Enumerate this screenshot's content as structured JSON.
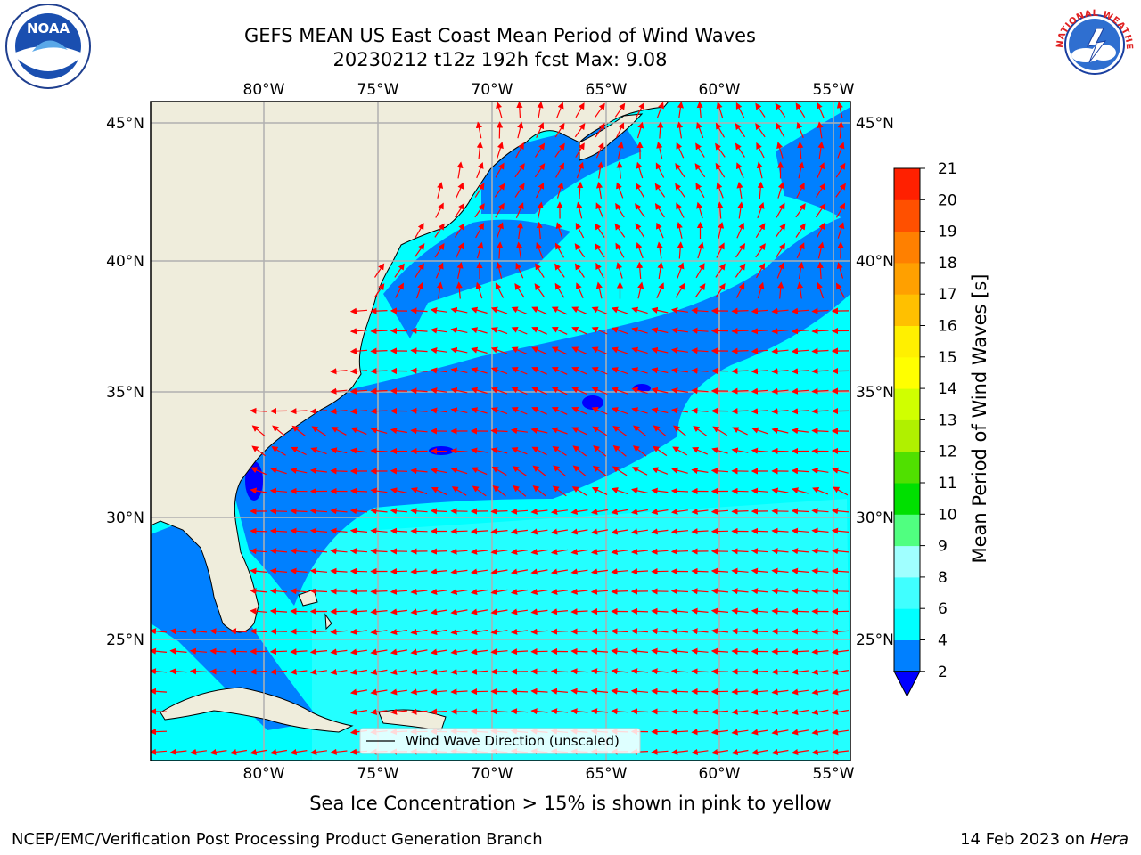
{
  "title_line1": "GEFS MEAN US East Coast Mean Period of Wind Waves",
  "title_line2": "20230212 t12z 192h fcst   Max: 9.08",
  "map": {
    "lon_labels": [
      "80°W",
      "75°W",
      "70°W",
      "65°W",
      "60°W",
      "55°W"
    ],
    "lat_labels": [
      "45°N",
      "40°N",
      "35°N",
      "30°N",
      "25°N"
    ],
    "legend_label": "Wind Wave Direction (unscaled)",
    "arrow_color": "#ff0000",
    "land_color": "#efeddc",
    "gridline_color": "#b0b0b0"
  },
  "colorbar": {
    "label": "Mean Period of Wind Waves [s]",
    "ticks": [
      "2",
      "4",
      "6",
      "8",
      "9",
      "10",
      "11",
      "12",
      "13",
      "14",
      "15",
      "16",
      "17",
      "18",
      "19",
      "20",
      "21"
    ],
    "colors": [
      "#0080ff",
      "#00ffff",
      "#40ffff",
      "#a0ffff",
      "#50ff80",
      "#00e000",
      "#50e000",
      "#b0f000",
      "#d0ff00",
      "#ffff00",
      "#fff000",
      "#ffc000",
      "#ffa000",
      "#ff8000",
      "#ff5000",
      "#ff2000",
      "#ff0000"
    ],
    "under_color": "#0000ff"
  },
  "logos": {
    "noaa_text": "NOAA",
    "nws_text": "NATIONAL WEATHER SERVICE"
  },
  "sea_ice_note": "Sea Ice Concentration > 15% is shown in pink to yellow",
  "footer_left": "NCEP/EMC/Verification Post Processing Product Generation Branch",
  "footer_right_date": "14 Feb 2023 on ",
  "footer_right_host": "Hera"
}
